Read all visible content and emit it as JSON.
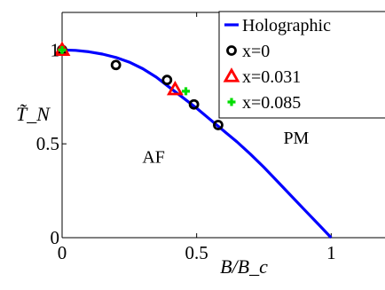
{
  "chart_data": {
    "type": "line",
    "xlabel": "B/B_c",
    "ylabel": "T̃_N",
    "xlim": [
      0,
      1.2
    ],
    "ylim": [
      0,
      1.2
    ],
    "x_ticks": [
      {
        "value": 0,
        "label": "0"
      },
      {
        "value": 0.5,
        "label": "0.5"
      },
      {
        "value": 1,
        "label": "1"
      }
    ],
    "y_ticks": [
      {
        "value": 0,
        "label": "0"
      },
      {
        "value": 0.5,
        "label": "0.5"
      },
      {
        "value": 1,
        "label": "1"
      }
    ],
    "grid": false,
    "legend_position": "top-right",
    "annotations": [
      {
        "text": "AF",
        "x": 0.34,
        "y": 0.4
      },
      {
        "text": "PM",
        "x": 0.87,
        "y": 0.5
      }
    ],
    "series": [
      {
        "name": "Holographic",
        "kind": "line",
        "color": "#0000ff",
        "x": [
          0,
          0.05,
          0.1,
          0.15,
          0.2,
          0.25,
          0.3,
          0.35,
          0.4,
          0.45,
          0.5,
          0.55,
          0.6,
          0.65,
          0.7,
          0.75,
          0.8,
          0.85,
          0.9,
          0.95,
          1.0
        ],
        "y": [
          1.0,
          0.998,
          0.99,
          0.978,
          0.96,
          0.935,
          0.9,
          0.855,
          0.8,
          0.745,
          0.69,
          0.63,
          0.57,
          0.51,
          0.445,
          0.375,
          0.3,
          0.225,
          0.15,
          0.075,
          0.0
        ]
      },
      {
        "name": "x=0",
        "kind": "marker",
        "marker": "circle",
        "color": "#000000",
        "x": [
          0.0,
          0.2,
          0.39,
          0.49,
          0.58
        ],
        "y": [
          1.0,
          0.92,
          0.84,
          0.71,
          0.6
        ]
      },
      {
        "name": "x=0.031",
        "kind": "marker",
        "marker": "triangle",
        "color": "#ff0000",
        "x": [
          0.0,
          0.42
        ],
        "y": [
          1.0,
          0.79
        ]
      },
      {
        "name": "x=0.085",
        "kind": "marker",
        "marker": "plus",
        "color": "#00dd00",
        "x": [
          0.0,
          0.46
        ],
        "y": [
          1.0,
          0.78
        ]
      }
    ]
  }
}
